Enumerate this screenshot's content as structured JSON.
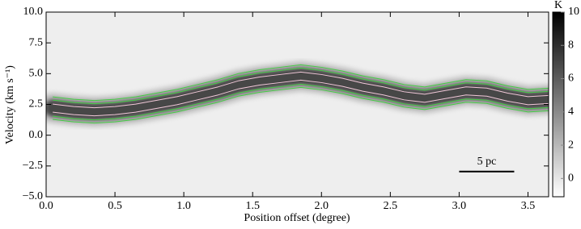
{
  "chart_data": {
    "type": "pv-diagram",
    "x_label": "Position offset (degree)",
    "y_label": "Velocity (km s⁻¹)",
    "xlim": [
      0,
      3.65
    ],
    "ylim": [
      -5,
      10
    ],
    "xticks": [
      {
        "value": 0,
        "label": "0.0"
      },
      {
        "value": 0.5,
        "label": "0.5"
      },
      {
        "value": 1,
        "label": "1.0"
      },
      {
        "value": 1.5,
        "label": "1.5"
      },
      {
        "value": 2,
        "label": "2.0"
      },
      {
        "value": 2.5,
        "label": "2.5"
      },
      {
        "value": 3,
        "label": "3.0"
      },
      {
        "value": 3.5,
        "label": "3.5"
      }
    ],
    "yticks": [
      {
        "value": -5,
        "label": "−5.0"
      },
      {
        "value": -2.5,
        "label": "−2.5"
      },
      {
        "value": 0,
        "label": "0.0"
      },
      {
        "value": 2.5,
        "label": "2.5"
      },
      {
        "value": 5,
        "label": "5.0"
      },
      {
        "value": 7.5,
        "label": "7.5"
      },
      {
        "value": 10,
        "label": "10.0"
      }
    ],
    "series": [
      {
        "color": "#333333",
        "x": [
          0.05,
          0.2,
          0.35,
          0.5,
          0.65,
          0.8,
          0.95,
          1.1,
          1.25,
          1.4,
          1.55,
          1.7,
          1.85,
          2.0,
          2.15,
          2.3,
          2.45,
          2.6,
          2.75,
          2.9,
          3.05,
          3.2,
          3.35,
          3.5,
          3.65
        ],
        "values": [
          2.2,
          2.0,
          1.9,
          2.0,
          2.2,
          2.5,
          2.8,
          3.2,
          3.6,
          4.1,
          4.4,
          4.6,
          4.8,
          4.6,
          4.3,
          3.9,
          3.6,
          3.2,
          3.0,
          3.3,
          3.6,
          3.5,
          3.1,
          2.8,
          2.9
        ]
      }
    ],
    "contour_color": "#44cc44",
    "colorbar": {
      "label": "K",
      "lim": [
        -1.1,
        10
      ],
      "ticks": [
        0,
        2,
        4,
        6,
        8,
        10
      ]
    },
    "scale_bar": {
      "label": "5 pc",
      "x": [
        3.0,
        3.4
      ],
      "y": -2.95
    }
  }
}
